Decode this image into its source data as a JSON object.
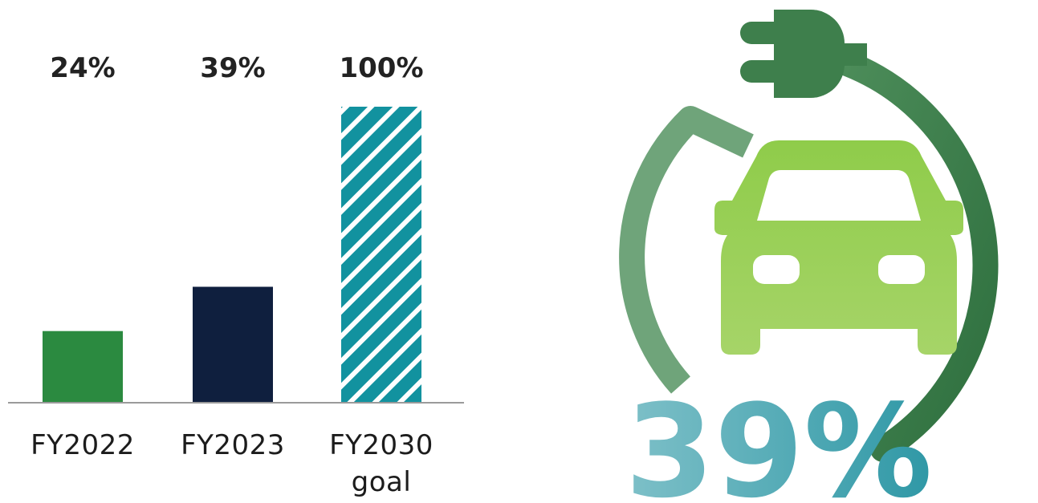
{
  "chart_data": {
    "type": "bar",
    "categories": [
      "FY2022",
      "FY2023",
      "FY2030 goal"
    ],
    "category_lines": [
      [
        "FY2022"
      ],
      [
        "FY2023"
      ],
      [
        "FY2030",
        "goal"
      ]
    ],
    "values": [
      24,
      39,
      100
    ],
    "value_labels": [
      "24%",
      "39%",
      "100%"
    ],
    "title": "",
    "xlabel": "",
    "ylabel": "",
    "ylim": [
      0,
      100
    ],
    "grid": false,
    "bar_styles": [
      "solid",
      "solid",
      "hatched"
    ],
    "colors": [
      "#2b8a40",
      "#0f1f3e",
      "#12929f"
    ]
  },
  "graphic": {
    "big_value": "39%",
    "icon": "electric-car-plug-icon",
    "colors": {
      "ring_dark": "#347a44",
      "ring_light": "#5d9a6a",
      "car": "#8cc84b",
      "percent": "#5fb3bc"
    }
  }
}
